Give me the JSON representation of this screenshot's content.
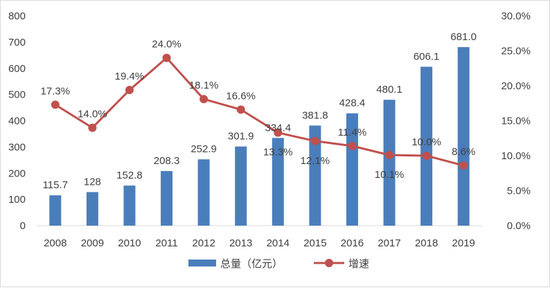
{
  "chart_data": {
    "type": "bar+line",
    "categories": [
      "2008",
      "2009",
      "2010",
      "2011",
      "2012",
      "2013",
      "2014",
      "2015",
      "2016",
      "2017",
      "2018",
      "2019"
    ],
    "series": [
      {
        "name": "总量（亿元）",
        "type": "bar",
        "axis": "left",
        "color": "#4a7ebb",
        "values": [
          115.7,
          128,
          152.8,
          208.3,
          252.9,
          301.9,
          334.4,
          381.8,
          428.4,
          480.1,
          606.1,
          681.0
        ],
        "labels": [
          "115.7",
          "128",
          "152.8",
          "208.3",
          "252.9",
          "301.9",
          "334.4",
          "381.8",
          "428.4",
          "480.1",
          "606.1",
          "681.0"
        ]
      },
      {
        "name": "增速",
        "type": "line",
        "axis": "right",
        "color": "#c0504d",
        "values": [
          17.3,
          14.0,
          19.4,
          24.0,
          18.1,
          16.6,
          13.3,
          12.1,
          11.4,
          10.1,
          10.0,
          8.6
        ],
        "labels": [
          "17.3%",
          "14.0%",
          "19.4%",
          "24.0%",
          "18.1%",
          "16.6%",
          "13.3%",
          "12.1%",
          "11.4%",
          "10.1%",
          "10.0%",
          "8.6%"
        ]
      }
    ],
    "y_left": {
      "min": 0,
      "max": 800,
      "step": 100,
      "ticks": [
        "0",
        "100",
        "200",
        "300",
        "400",
        "500",
        "600",
        "700",
        "800"
      ]
    },
    "y_right": {
      "min": 0,
      "max": 30,
      "step": 5,
      "ticks": [
        "0.0%",
        "5.0%",
        "10.0%",
        "15.0%",
        "20.0%",
        "25.0%",
        "30.0%"
      ]
    },
    "title": "",
    "xlabel": "",
    "ylabel": "",
    "grid": false,
    "legend": "bottom-center"
  }
}
